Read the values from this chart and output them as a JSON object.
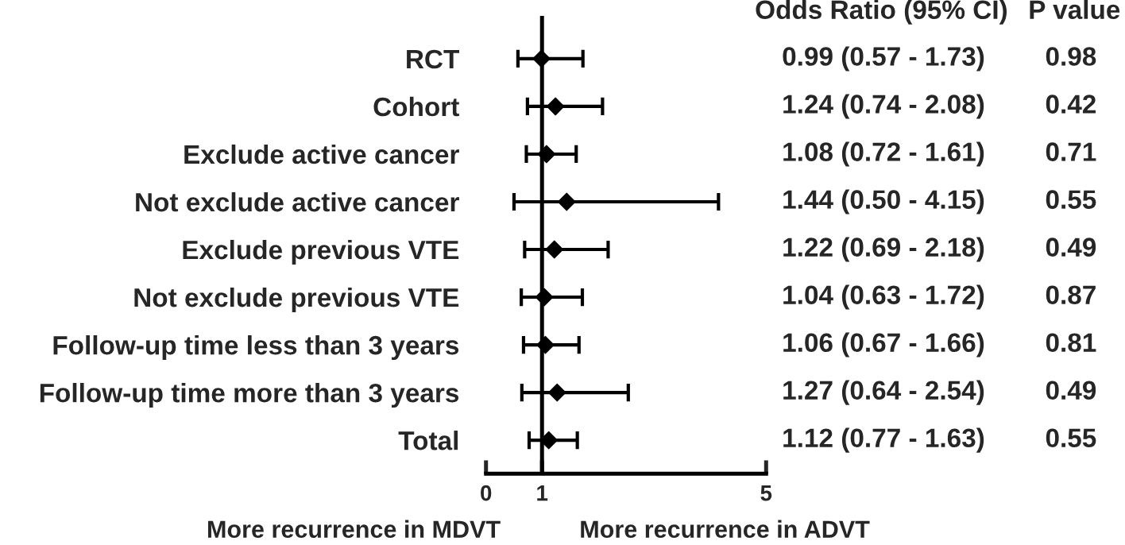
{
  "chart_data": {
    "type": "scatter",
    "orientation": "horizontal",
    "categories": [
      "RCT",
      "Cohort",
      "Exclude active cancer",
      "Not exclude active cancer",
      "Exclude previous VTE",
      "Not exclude previous VTE",
      "Follow-up time less than 3 years",
      "Follow-up time more than 3 years",
      "Total"
    ],
    "values": [
      0.99,
      1.24,
      1.08,
      1.44,
      1.22,
      1.04,
      1.06,
      1.27,
      1.12
    ],
    "errors": [
      [
        0.57,
        1.73
      ],
      [
        0.74,
        2.08
      ],
      [
        0.72,
        1.61
      ],
      [
        0.5,
        4.15
      ],
      [
        0.69,
        2.18
      ],
      [
        0.63,
        1.72
      ],
      [
        0.67,
        1.66
      ],
      [
        0.64,
        2.54
      ],
      [
        0.77,
        1.63
      ]
    ],
    "value_labels": [
      "0.99 (0.57 - 1.73)",
      "1.24 (0.74 - 2.08)",
      "1.08 (0.72 - 1.61)",
      "1.44 (0.50 - 4.15)",
      "1.22 (0.69 - 2.18)",
      "1.04 (0.63 - 1.72)",
      "1.06 (0.67 - 1.66)",
      "1.27 (0.64 - 2.54)",
      "1.12 (0.77 - 1.63)"
    ],
    "color": "#000000",
    "marker": "diamond",
    "xlim": [
      0,
      5
    ],
    "xticks": [
      0,
      1,
      5
    ],
    "ref_lines": [
      {
        "axis": "x",
        "value": 1,
        "color": "#000000"
      }
    ],
    "annotations": [
      "Odds Ratio (95% CI)",
      "P value",
      "More recurrence in MDVT",
      "More recurrence in ADVT",
      "0.98",
      "0.42",
      "0.71",
      "0.55",
      "0.49",
      "0.87",
      "0.81",
      "0.49",
      "0.55"
    ],
    "grid": false,
    "legend": false
  }
}
